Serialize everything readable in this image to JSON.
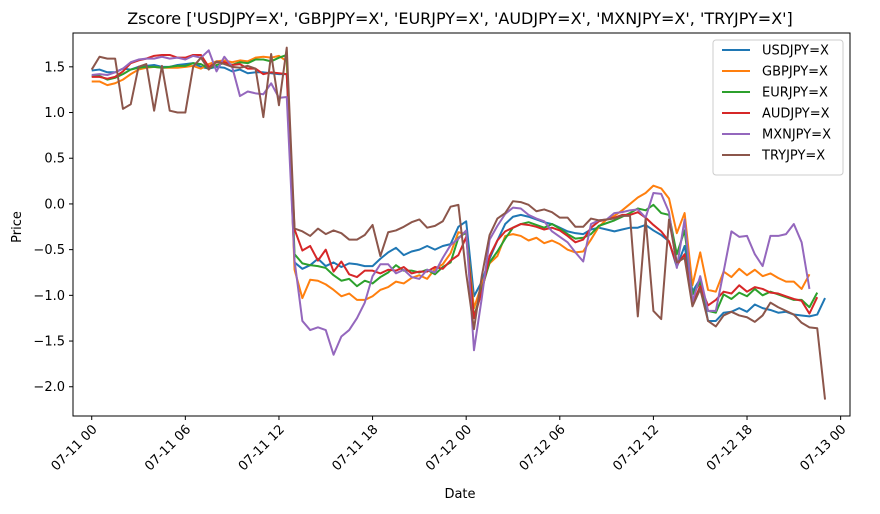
{
  "chart_data": {
    "type": "line",
    "title": "Zscore ['USDJPY=X', 'GBPJPY=X', 'EURJPY=X', 'AUDJPY=X', 'MXNJPY=X', 'TRYJPY=X']",
    "xlabel": "Date",
    "ylabel": "Price",
    "x_start_label": "07-11 00",
    "x_step_hours": 0.5,
    "x_ticks": [
      {
        "hours": 0,
        "label": "07-11 00"
      },
      {
        "hours": 6,
        "label": "07-11 06"
      },
      {
        "hours": 12,
        "label": "07-11 12"
      },
      {
        "hours": 18,
        "label": "07-11 18"
      },
      {
        "hours": 24,
        "label": "07-12 00"
      },
      {
        "hours": 30,
        "label": "07-12 06"
      },
      {
        "hours": 36,
        "label": "07-12 12"
      },
      {
        "hours": 42,
        "label": "07-12 18"
      },
      {
        "hours": 48,
        "label": "07-13 00"
      }
    ],
    "y_ticks": [
      1.5,
      1.0,
      0.5,
      0.0,
      -0.5,
      -1.0,
      -1.5,
      -2.0
    ],
    "y_tick_labels": [
      "1.5",
      "1.0",
      "0.5",
      "0.0",
      "−0.5",
      "−1.0",
      "−1.5",
      "−2.0"
    ],
    "xlim_hours": [
      -1.2,
      48.6
    ],
    "ylim": [
      -2.32,
      1.87
    ],
    "grid": false,
    "legend_position": "top-right",
    "series": [
      {
        "name": "USDJPY=X",
        "color": "#1f77b4",
        "values": [
          1.46,
          1.47,
          1.44,
          1.44,
          1.48,
          1.47,
          1.5,
          1.51,
          1.52,
          1.5,
          1.5,
          1.52,
          1.53,
          1.54,
          1.5,
          1.48,
          1.5,
          1.49,
          1.45,
          1.47,
          1.43,
          1.44,
          1.44,
          1.43,
          1.42,
          1.42,
          -0.64,
          -0.71,
          -0.67,
          -0.6,
          -0.68,
          -0.64,
          -0.69,
          -0.65,
          -0.66,
          -0.68,
          -0.68,
          -0.6,
          -0.53,
          -0.48,
          -0.56,
          -0.52,
          -0.5,
          -0.46,
          -0.5,
          -0.46,
          -0.44,
          -0.25,
          -0.19,
          -1.01,
          -0.85,
          -0.6,
          -0.4,
          -0.22,
          -0.14,
          -0.12,
          -0.14,
          -0.17,
          -0.2,
          -0.22,
          -0.26,
          -0.3,
          -0.32,
          -0.33,
          -0.28,
          -0.26,
          -0.28,
          -0.3,
          -0.28,
          -0.26,
          -0.26,
          -0.23,
          -0.29,
          -0.34,
          -0.41,
          -0.69,
          -0.46,
          -0.96,
          -0.82,
          -1.28,
          -1.28,
          -1.19,
          -1.18,
          -1.14,
          -1.18,
          -1.1,
          -1.14,
          -1.16,
          -1.19,
          -1.18,
          -1.21,
          -1.22,
          -1.23,
          -1.21,
          -1.03
        ]
      },
      {
        "name": "GBPJPY=X",
        "color": "#ff7f0e",
        "values": [
          1.34,
          1.34,
          1.3,
          1.32,
          1.36,
          1.42,
          1.47,
          1.49,
          1.5,
          1.49,
          1.49,
          1.49,
          1.5,
          1.51,
          1.48,
          1.53,
          1.56,
          1.57,
          1.55,
          1.57,
          1.56,
          1.6,
          1.61,
          1.6,
          1.62,
          1.56,
          -0.72,
          -1.03,
          -0.83,
          -0.84,
          -0.88,
          -0.94,
          -1.01,
          -0.98,
          -1.05,
          -1.05,
          -1.01,
          -0.94,
          -0.91,
          -0.85,
          -0.87,
          -0.81,
          -0.78,
          -0.82,
          -0.71,
          -0.66,
          -0.54,
          -0.31,
          -0.33,
          -1.14,
          -0.88,
          -0.65,
          -0.57,
          -0.35,
          -0.33,
          -0.35,
          -0.4,
          -0.37,
          -0.43,
          -0.4,
          -0.44,
          -0.5,
          -0.53,
          -0.52,
          -0.39,
          -0.25,
          -0.17,
          -0.13,
          -0.07,
          0.0,
          0.07,
          0.12,
          0.2,
          0.17,
          0.06,
          -0.32,
          -0.1,
          -0.89,
          -0.53,
          -0.94,
          -0.96,
          -0.74,
          -0.8,
          -0.71,
          -0.78,
          -0.72,
          -0.79,
          -0.76,
          -0.81,
          -0.85,
          -0.85,
          -0.93,
          -0.77
        ]
      },
      {
        "name": "EURJPY=X",
        "color": "#2ca02c",
        "values": [
          1.4,
          1.4,
          1.36,
          1.38,
          1.42,
          1.47,
          1.49,
          1.5,
          1.5,
          1.49,
          1.5,
          1.51,
          1.51,
          1.54,
          1.53,
          1.48,
          1.52,
          1.54,
          1.52,
          1.55,
          1.54,
          1.58,
          1.58,
          1.56,
          1.6,
          1.63,
          -0.55,
          -0.65,
          -0.67,
          -0.68,
          -0.7,
          -0.78,
          -0.84,
          -0.82,
          -0.9,
          -0.84,
          -0.87,
          -0.8,
          -0.75,
          -0.67,
          -0.73,
          -0.73,
          -0.75,
          -0.72,
          -0.77,
          -0.69,
          -0.64,
          -0.37,
          -0.31,
          -1.24,
          -0.93,
          -0.64,
          -0.52,
          -0.38,
          -0.26,
          -0.22,
          -0.2,
          -0.23,
          -0.26,
          -0.22,
          -0.27,
          -0.33,
          -0.38,
          -0.37,
          -0.33,
          -0.24,
          -0.21,
          -0.18,
          -0.14,
          -0.1,
          -0.05,
          -0.07,
          -0.01,
          -0.1,
          -0.12,
          -0.55,
          -0.29,
          -0.99,
          -0.86,
          -1.17,
          -1.19,
          -0.99,
          -1.04,
          -0.97,
          -1.01,
          -0.93,
          -1.0,
          -0.96,
          -0.99,
          -1.02,
          -1.05,
          -1.05,
          -1.13,
          -0.97
        ]
      },
      {
        "name": "AUDJPY=X",
        "color": "#d62728",
        "values": [
          1.39,
          1.39,
          1.37,
          1.39,
          1.45,
          1.54,
          1.57,
          1.59,
          1.62,
          1.63,
          1.63,
          1.6,
          1.6,
          1.63,
          1.63,
          1.5,
          1.55,
          1.55,
          1.52,
          1.53,
          1.48,
          1.48,
          1.42,
          1.44,
          1.43,
          1.42,
          -0.28,
          -0.51,
          -0.46,
          -0.62,
          -0.5,
          -0.74,
          -0.63,
          -0.77,
          -0.8,
          -0.73,
          -0.73,
          -0.76,
          -0.72,
          -0.73,
          -0.69,
          -0.76,
          -0.74,
          -0.74,
          -0.69,
          -0.71,
          -0.62,
          -0.56,
          -0.36,
          -1.25,
          -0.96,
          -0.57,
          -0.4,
          -0.3,
          -0.26,
          -0.22,
          -0.23,
          -0.25,
          -0.28,
          -0.26,
          -0.29,
          -0.35,
          -0.42,
          -0.39,
          -0.26,
          -0.19,
          -0.17,
          -0.15,
          -0.12,
          -0.12,
          -0.09,
          -0.15,
          -0.23,
          -0.3,
          -0.41,
          -0.67,
          -0.55,
          -1.1,
          -0.9,
          -1.11,
          -1.05,
          -0.96,
          -0.98,
          -0.89,
          -0.96,
          -0.91,
          -0.93,
          -0.97,
          -0.98,
          -1.01,
          -1.04,
          -1.06,
          -1.2,
          -1.02
        ]
      },
      {
        "name": "MXNJPY=X",
        "color": "#9467bd",
        "values": [
          1.41,
          1.42,
          1.41,
          1.44,
          1.48,
          1.55,
          1.58,
          1.59,
          1.59,
          1.61,
          1.59,
          1.6,
          1.58,
          1.62,
          1.6,
          1.68,
          1.45,
          1.61,
          1.5,
          1.18,
          1.23,
          1.21,
          1.2,
          1.32,
          1.16,
          1.17,
          -0.62,
          -1.28,
          -1.38,
          -1.35,
          -1.38,
          -1.65,
          -1.45,
          -1.38,
          -1.25,
          -1.08,
          -0.79,
          -0.66,
          -0.66,
          -0.76,
          -0.72,
          -0.8,
          -0.82,
          -0.72,
          -0.75,
          -0.59,
          -0.45,
          -0.38,
          -0.29,
          -1.6,
          -1.03,
          -0.39,
          -0.24,
          -0.11,
          -0.04,
          -0.05,
          -0.12,
          -0.16,
          -0.19,
          -0.3,
          -0.36,
          -0.42,
          -0.53,
          -0.63,
          -0.22,
          -0.18,
          -0.17,
          -0.1,
          -0.09,
          -0.07,
          -0.06,
          -0.15,
          0.12,
          0.11,
          -0.09,
          -0.7,
          -0.17,
          -1.07,
          -0.79,
          -1.17,
          -1.17,
          -0.74,
          -0.3,
          -0.36,
          -0.35,
          -0.55,
          -0.68,
          -0.35,
          -0.35,
          -0.33,
          -0.22,
          -0.42,
          -0.93
        ]
      },
      {
        "name": "TRYJPY=X",
        "color": "#8c564b",
        "values": [
          1.47,
          1.61,
          1.59,
          1.59,
          1.04,
          1.09,
          1.5,
          1.53,
          1.02,
          1.51,
          1.02,
          1.0,
          1.0,
          1.5,
          1.6,
          1.47,
          1.56,
          1.53,
          1.5,
          1.49,
          1.51,
          1.48,
          0.95,
          1.64,
          1.08,
          1.71,
          -0.27,
          -0.3,
          -0.35,
          -0.27,
          -0.33,
          -0.29,
          -0.32,
          -0.39,
          -0.39,
          -0.34,
          -0.23,
          -0.57,
          -0.31,
          -0.29,
          -0.25,
          -0.2,
          -0.17,
          -0.26,
          -0.24,
          -0.19,
          -0.03,
          -0.01,
          -0.76,
          -1.37,
          -0.79,
          -0.34,
          -0.16,
          -0.1,
          0.03,
          0.02,
          -0.01,
          -0.08,
          -0.06,
          -0.09,
          -0.15,
          -0.15,
          -0.25,
          -0.25,
          -0.16,
          -0.18,
          -0.17,
          -0.16,
          -0.13,
          -0.13,
          -1.23,
          -0.16,
          -1.17,
          -1.26,
          -0.17,
          -0.64,
          -0.59,
          -1.12,
          -0.93,
          -1.28,
          -1.34,
          -1.22,
          -1.18,
          -1.22,
          -1.24,
          -1.29,
          -1.22,
          -1.08,
          -1.13,
          -1.17,
          -1.21,
          -1.3,
          -1.35,
          -1.36,
          -2.14
        ]
      }
    ]
  }
}
